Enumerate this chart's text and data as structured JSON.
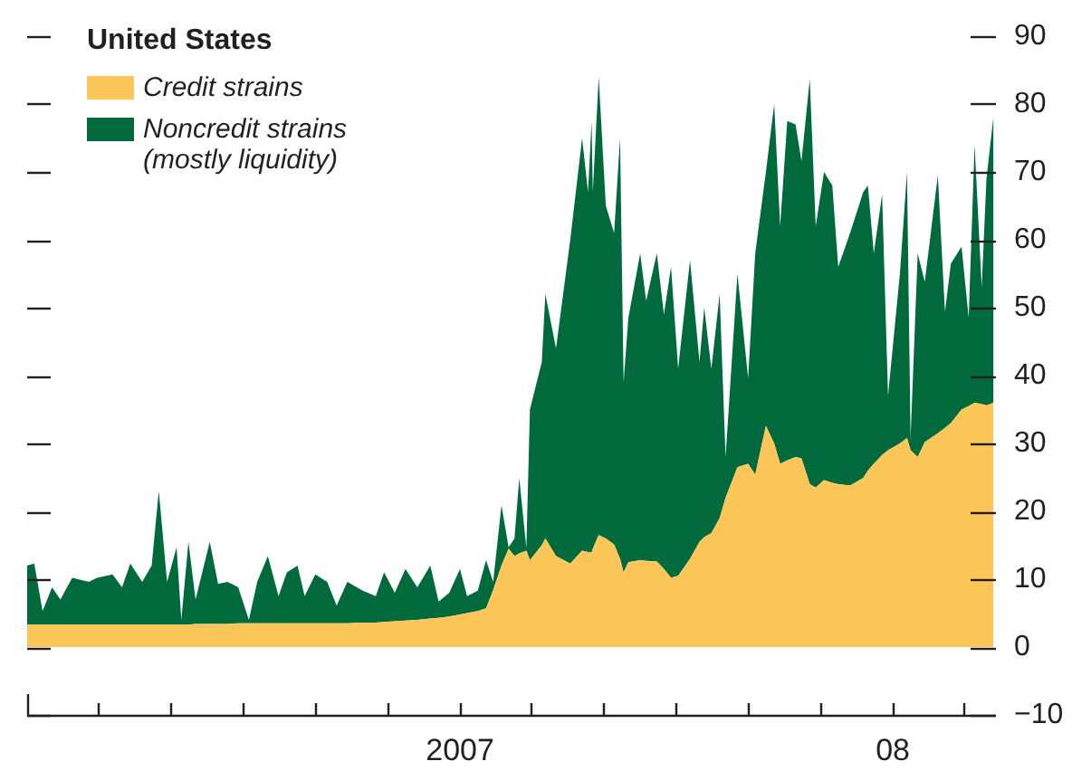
{
  "chart_data": {
    "type": "area",
    "title": "United States",
    "stacked": true,
    "legend": "top left",
    "grid": false,
    "x": [
      "2006-01-01",
      "2006-01-07",
      "2006-01-14",
      "2006-01-22",
      "2006-01-29",
      "2006-02-08",
      "2006-02-22",
      "2006-03-01",
      "2006-03-14",
      "2006-03-22",
      "2006-03-29",
      "2006-04-08",
      "2006-04-16",
      "2006-04-22",
      "2006-04-29",
      "2006-05-07",
      "2006-05-11",
      "2006-05-17",
      "2006-05-23",
      "2006-06-04",
      "2006-06-11",
      "2006-06-19",
      "2006-06-28",
      "2006-07-07",
      "2006-07-14",
      "2006-07-23",
      "2006-08-01",
      "2006-08-08",
      "2006-08-17",
      "2006-08-23",
      "2006-09-01",
      "2006-09-11",
      "2006-09-19",
      "2006-09-28",
      "2006-10-11",
      "2006-10-22",
      "2006-10-29",
      "2006-11-07",
      "2006-11-16",
      "2006-11-26",
      "2006-12-07",
      "2006-12-14",
      "2006-12-23",
      "2007-01-01",
      "2007-01-07",
      "2007-01-16",
      "2007-01-23",
      "2007-01-29",
      "2007-02-05",
      "2007-02-11",
      "2007-02-16",
      "2007-02-20",
      "2007-02-26",
      "2007-03-01",
      "2007-03-11",
      "2007-03-14",
      "2007-03-23",
      "2007-04-04",
      "2007-04-14",
      "2007-04-19",
      "2007-04-22",
      "2007-04-23",
      "2007-04-28",
      "2007-05-04",
      "2007-05-11",
      "2007-05-16",
      "2007-05-19",
      "2007-05-23",
      "2007-06-02",
      "2007-06-07",
      "2007-06-16",
      "2007-06-22",
      "2007-06-28",
      "2007-07-04",
      "2007-07-14",
      "2007-07-22",
      "2007-07-26",
      "2007-08-01",
      "2007-08-08",
      "2007-08-13",
      "2007-08-23",
      "2007-09-01",
      "2007-09-07",
      "2007-09-16",
      "2007-09-23",
      "2007-09-28",
      "2007-10-04",
      "2007-10-11",
      "2007-10-16",
      "2007-10-23",
      "2007-10-28",
      "2007-11-04",
      "2007-11-11",
      "2007-11-16",
      "2007-11-26",
      "2007-12-07",
      "2007-12-11",
      "2007-12-16",
      "2007-12-23",
      "2007-12-28",
      "2008-01-07",
      "2008-01-13",
      "2008-01-16",
      "2008-01-22",
      "2008-01-28",
      "2008-02-08",
      "2008-02-14",
      "2008-02-19",
      "2008-02-28",
      "2008-03-05",
      "2008-03-10",
      "2008-03-16",
      "2008-03-20",
      "2008-03-26"
    ],
    "series": [
      {
        "name": "Credit strains",
        "color": "#fdc659",
        "values": [
          3.3,
          3.3,
          3.3,
          3.3,
          3.3,
          3.3,
          3.3,
          3.3,
          3.3,
          3.3,
          3.3,
          3.3,
          3.3,
          3.3,
          3.3,
          3.3,
          3.3,
          3.3,
          3.4,
          3.4,
          3.4,
          3.4,
          3.5,
          3.5,
          3.5,
          3.5,
          3.5,
          3.5,
          3.5,
          3.5,
          3.5,
          3.5,
          3.5,
          3.5,
          3.6,
          3.6,
          3.7,
          3.8,
          3.9,
          4,
          4.2,
          4.3,
          4.5,
          4.8,
          5,
          5.3,
          5.7,
          8.4,
          12,
          14.5,
          13.4,
          13.8,
          14.2,
          12.8,
          15,
          16,
          13.4,
          12.3,
          14.2,
          14,
          13.9,
          14.5,
          16.5,
          16,
          15.1,
          13,
          11,
          12.5,
          12.8,
          12.7,
          12.6,
          11.5,
          10.2,
          10.5,
          13,
          15.5,
          16.2,
          16.8,
          19,
          22,
          26.5,
          27,
          25.4,
          32.6,
          30,
          27,
          27.5,
          28,
          27.8,
          24,
          23.5,
          24.6,
          24.2,
          24,
          23.8,
          24.9,
          26,
          27,
          28.3,
          29,
          30,
          30.8,
          29,
          28,
          30.2,
          31.5,
          32.3,
          33,
          35,
          35.5,
          36,
          35.8,
          35.6,
          36
        ]
      },
      {
        "name": "Noncredit strains\n(mostly liquidity)",
        "color": "#006a3d",
        "values": [
          8.7,
          9,
          2,
          5.5,
          3.7,
          6.9,
          6.3,
          6.9,
          7.4,
          5.5,
          9,
          6.3,
          8.7,
          19.7,
          6.3,
          11.4,
          0.7,
          12.2,
          3.6,
          12.1,
          5.9,
          6.2,
          5.3,
          0.5,
          6.1,
          9.9,
          4,
          7.5,
          8.5,
          4,
          7.2,
          6.1,
          2.6,
          6.1,
          4.7,
          3.9,
          7.3,
          4.2,
          7.6,
          4.8,
          7.8,
          2.4,
          3.5,
          6.7,
          2.5,
          3,
          7.1,
          1.2,
          8.9,
          0.2,
          2.6,
          11.1,
          0.4,
          22.2,
          27,
          36,
          30.6,
          47.7,
          60.8,
          53,
          63.6,
          52.5,
          67.5,
          49,
          45.9,
          62,
          28,
          36,
          45.2,
          38.3,
          45.4,
          37.5,
          45.8,
          30.5,
          44,
          26.5,
          33.8,
          24.2,
          33,
          6,
          28.5,
          12.6,
          32.6,
          37.4,
          50,
          35,
          50,
          49,
          43.8,
          59.7,
          38.5,
          45.4,
          43.8,
          32,
          37.2,
          42.1,
          42,
          31,
          38.4,
          8,
          25,
          39.2,
          1.8,
          30,
          23.6,
          38,
          17.1,
          23.5,
          24,
          13,
          38,
          17.2,
          33.4,
          42.3
        ]
      }
    ],
    "xlim": [
      "2006-01-01",
      "2008-03-28"
    ],
    "xticks": [
      {
        "value": "2006-01-01",
        "label": null
      },
      {
        "value": "2006-03-01",
        "label": null
      },
      {
        "value": "2006-05-01",
        "label": null
      },
      {
        "value": "2006-07-01",
        "label": null
      },
      {
        "value": "2006-09-01",
        "label": null
      },
      {
        "value": "2006-11-01",
        "label": null
      },
      {
        "value": "2007-01-01",
        "label": "2007"
      },
      {
        "value": "2007-03-01",
        "label": null
      },
      {
        "value": "2007-05-01",
        "label": null
      },
      {
        "value": "2007-07-01",
        "label": null
      },
      {
        "value": "2007-09-01",
        "label": null
      },
      {
        "value": "2007-11-01",
        "label": null
      },
      {
        "value": "2008-01-01",
        "label": "08"
      },
      {
        "value": "2008-03-01",
        "label": null
      }
    ],
    "ylim": [
      -10,
      90
    ],
    "yticks": [
      {
        "value": -10,
        "label": "−10"
      },
      0,
      10,
      20,
      30,
      40,
      50,
      60,
      70,
      80,
      90
    ]
  }
}
